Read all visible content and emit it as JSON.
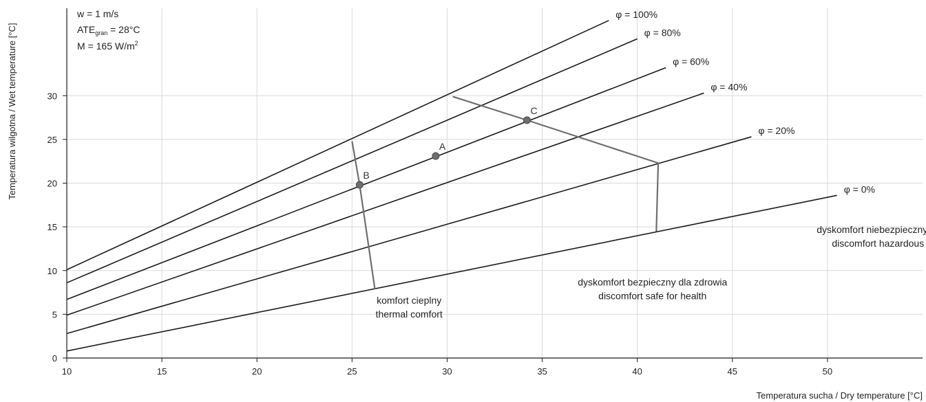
{
  "chart_data": {
    "type": "line",
    "xlabel": "Temperatura sucha / Dry temperature [°C]",
    "ylabel": "Temperatura wilgotna / Wet temperature [°C]",
    "xlim": [
      10,
      55
    ],
    "ylim": [
      0,
      40
    ],
    "x_ticks": [
      10,
      15,
      20,
      25,
      30,
      35,
      40,
      45,
      50
    ],
    "y_ticks": [
      0,
      5,
      10,
      15,
      20,
      25,
      30
    ],
    "grid": true,
    "parameters": {
      "line1": "w = 1 m/s",
      "line2_prefix": "ATE",
      "line2_sub": "gran",
      "line2_suffix": " = 28°C",
      "line3_prefix": "M = 165 W/m",
      "line3_sup": "2"
    },
    "series": [
      {
        "name": "φ = 100%",
        "x": [
          10,
          38.5
        ],
        "y": [
          10.1,
          38.6
        ]
      },
      {
        "name": "φ = 80%",
        "x": [
          10,
          40
        ],
        "y": [
          8.6,
          36.5
        ]
      },
      {
        "name": "φ = 60%",
        "x": [
          10,
          41.5
        ],
        "y": [
          6.7,
          33.2
        ]
      },
      {
        "name": "φ = 40%",
        "x": [
          10,
          43.5
        ],
        "y": [
          4.9,
          30.3
        ]
      },
      {
        "name": "φ = 20%",
        "x": [
          10,
          46
        ],
        "y": [
          2.8,
          25.3
        ]
      },
      {
        "name": "φ = 0%",
        "x": [
          10,
          50.5
        ],
        "y": [
          0.8,
          18.6
        ]
      }
    ],
    "boundaries": [
      {
        "x": [
          25,
          25.4,
          26.2
        ],
        "y": [
          24.8,
          19.8,
          7.9
        ]
      },
      {
        "x": [
          30.3,
          34.2,
          41.1,
          41.0
        ],
        "y": [
          29.9,
          27.2,
          22.3,
          14.5
        ]
      }
    ],
    "points": [
      {
        "label": "A",
        "x": 29.4,
        "y": 23.1
      },
      {
        "label": "B",
        "x": 25.4,
        "y": 19.8
      },
      {
        "label": "C",
        "x": 34.2,
        "y": 27.2
      }
    ],
    "regions": [
      {
        "line1": "komfort cieplny",
        "line2": "thermal comfort",
        "x": 28,
        "y": 6.2
      },
      {
        "line1": "dyskomfort bezpieczny dla zdrowia",
        "line2": "discomfort safe for health",
        "x": 40.8,
        "y": 8.3
      },
      {
        "line1": "dyskomfort niebezpieczny dla zdrowia",
        "line2": "discomfort hazardous to health",
        "x": 53.7,
        "y": 14.3
      }
    ]
  }
}
